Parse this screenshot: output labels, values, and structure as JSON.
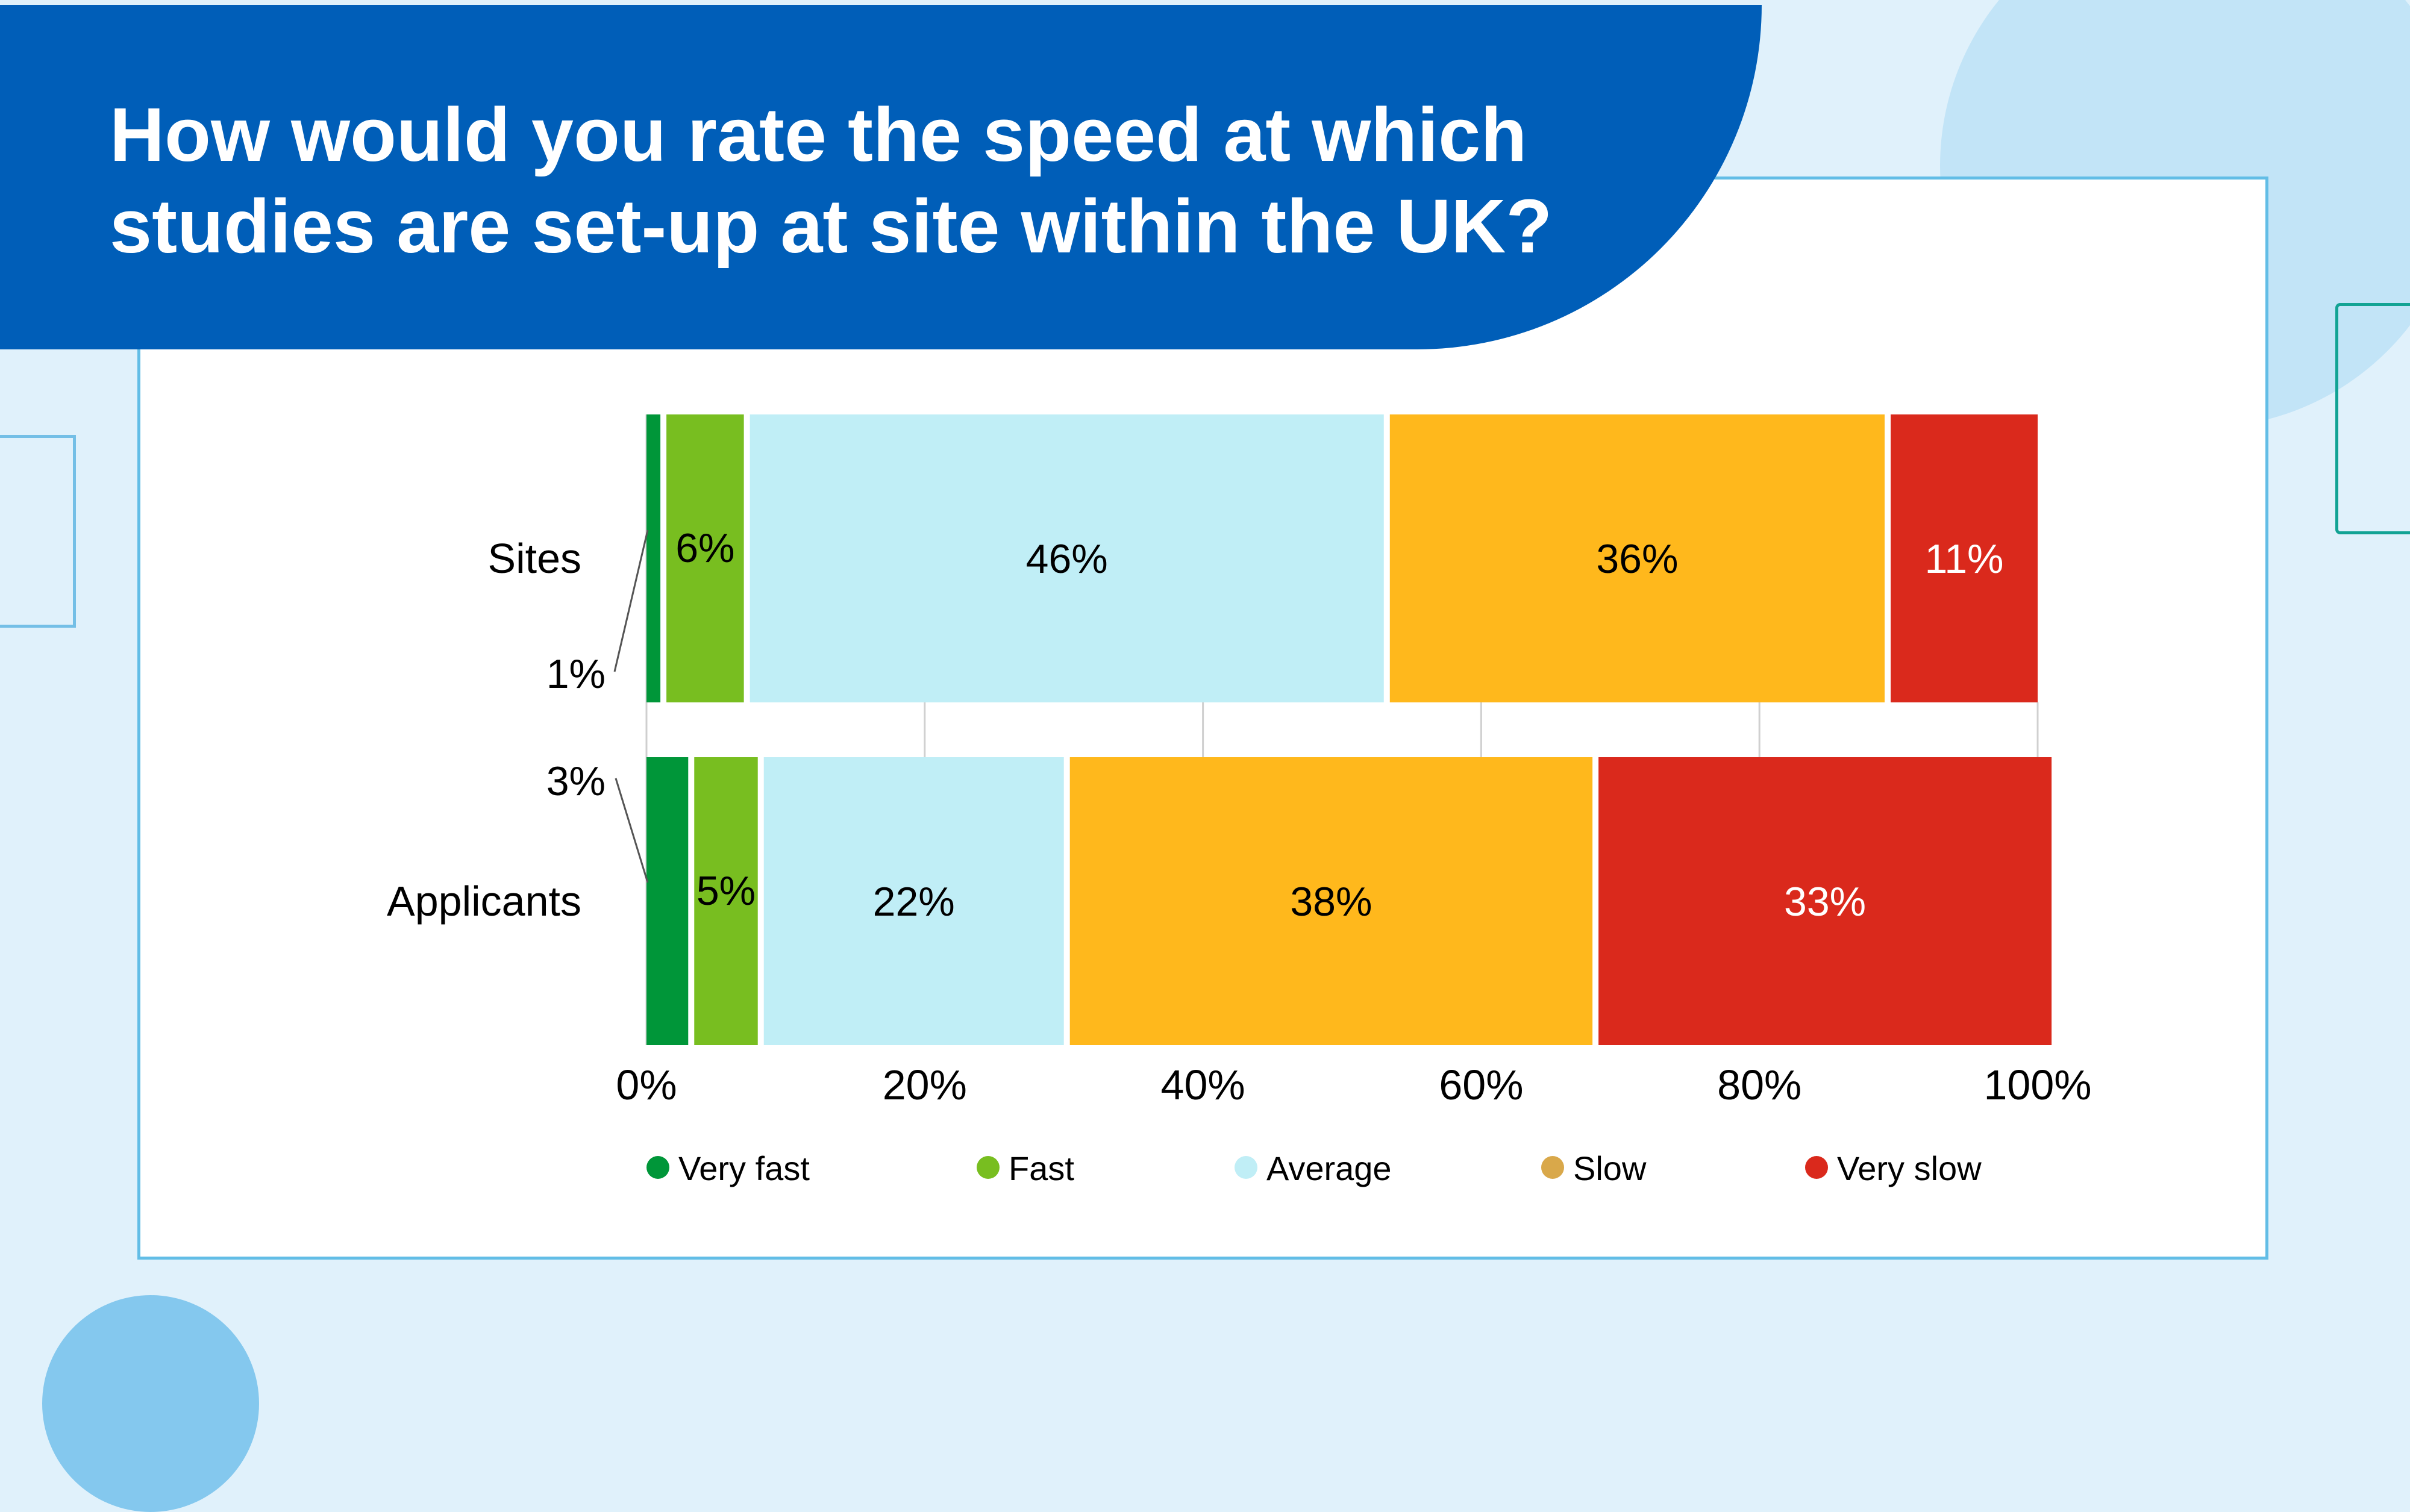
{
  "title": "How would you rate the speed at which studies are set-up at site within the UK?",
  "colors": {
    "background": "#e0f1fb",
    "banner": "#005eb8",
    "card_border": "#62bde6"
  },
  "chart_data": {
    "type": "bar",
    "orientation": "horizontal",
    "stacked": true,
    "title": "How would you rate the speed at which studies are set-up at site within the UK?",
    "xlabel": "",
    "ylabel": "",
    "categories": [
      "Sites",
      "Applicants"
    ],
    "xlim": [
      0,
      100
    ],
    "x_ticks": [
      "0%",
      "20%",
      "40%",
      "60%",
      "80%",
      "100%"
    ],
    "grid": true,
    "legend_position": "bottom",
    "series": [
      {
        "name": "Very fast",
        "color": "#009639",
        "label_color": "#000000",
        "values": [
          1,
          3
        ],
        "labels": [
          "1%",
          "3%"
        ]
      },
      {
        "name": "Fast",
        "color": "#78be20",
        "label_color": "#000000",
        "values": [
          6,
          5
        ],
        "labels": [
          "6%",
          "5%"
        ]
      },
      {
        "name": "Average",
        "color": "#c0eef6",
        "label_color": "#000000",
        "values": [
          46,
          22
        ],
        "labels": [
          "46%",
          "22%"
        ]
      },
      {
        "name": "Slow",
        "color": "#ffb81c",
        "legend_color": "#d9a84a",
        "label_color": "#000000",
        "values": [
          36,
          38
        ],
        "labels": [
          "36%",
          "38%"
        ]
      },
      {
        "name": "Very slow",
        "color": "#da291c",
        "label_color": "#ffffff",
        "values": [
          11,
          33
        ],
        "labels": [
          "11%",
          "33%"
        ]
      }
    ]
  }
}
